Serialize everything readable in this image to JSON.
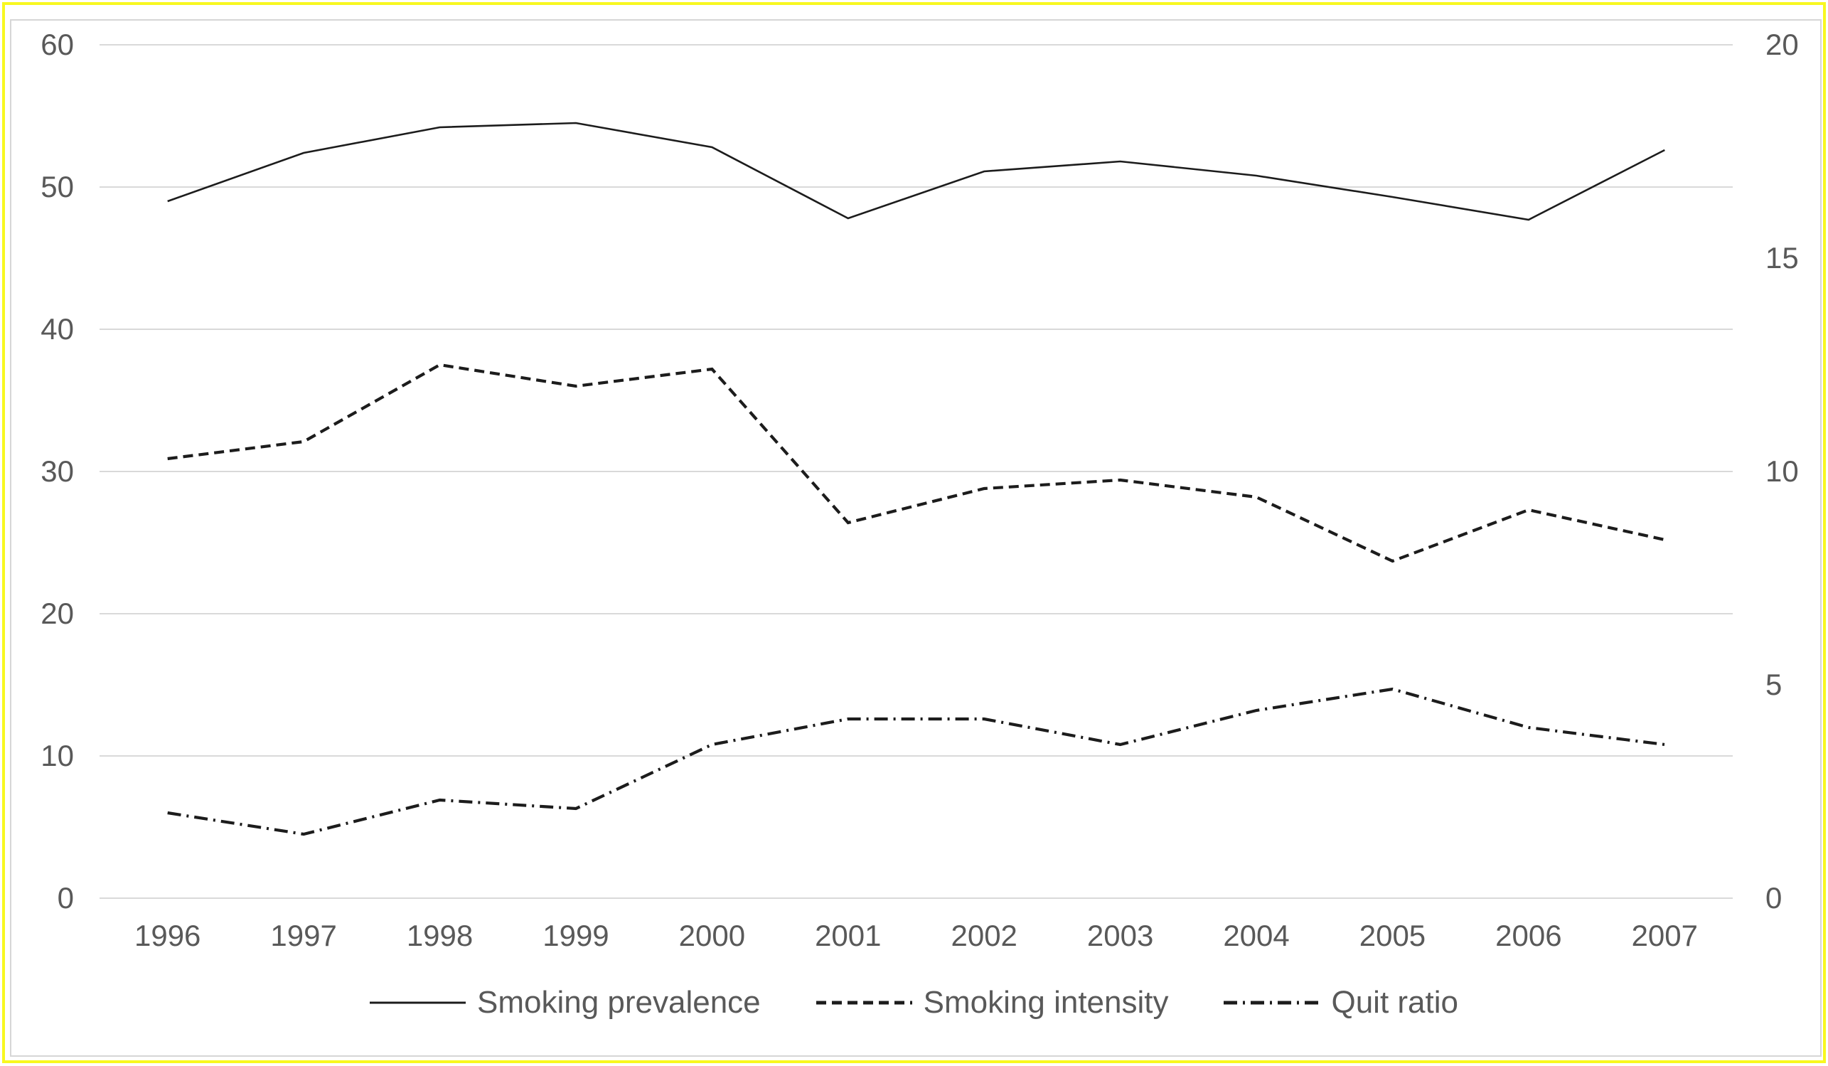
{
  "chart_data": {
    "type": "line",
    "title": "",
    "x": [
      1996,
      1997,
      1998,
      1999,
      2000,
      2001,
      2002,
      2003,
      2004,
      2005,
      2006,
      2007
    ],
    "series": [
      {
        "name": "Smoking prevalence",
        "axis": "left",
        "style": "solid",
        "values": [
          49.0,
          52.4,
          54.2,
          54.5,
          52.8,
          47.8,
          51.1,
          51.8,
          50.8,
          49.3,
          47.7,
          52.6
        ]
      },
      {
        "name": "Smoking intensity",
        "axis": "right",
        "style": "dashed",
        "values": [
          10.3,
          10.7,
          12.5,
          12.0,
          12.4,
          8.8,
          9.6,
          9.8,
          9.4,
          7.9,
          9.1,
          8.4
        ]
      },
      {
        "name": "Quit ratio",
        "axis": "right",
        "style": "dash-dot",
        "values": [
          2.0,
          1.5,
          2.3,
          2.1,
          3.6,
          4.2,
          4.2,
          3.6,
          4.4,
          4.9,
          4.0,
          3.6
        ]
      }
    ],
    "left_axis": {
      "ticks": [
        0,
        10,
        20,
        30,
        40,
        50,
        60
      ],
      "range": [
        0,
        60
      ]
    },
    "right_axis": {
      "ticks": [
        0,
        5,
        10,
        15,
        20
      ],
      "range": [
        0,
        20
      ]
    },
    "grid": true,
    "legend_position": "bottom",
    "colors": {
      "line": "#1c1c1c",
      "grid": "#d9d9d9",
      "tick_text": "#595959",
      "outer_border": "#f8f820",
      "frame_border": "#d6d6d6",
      "background": "#ffffff"
    }
  }
}
